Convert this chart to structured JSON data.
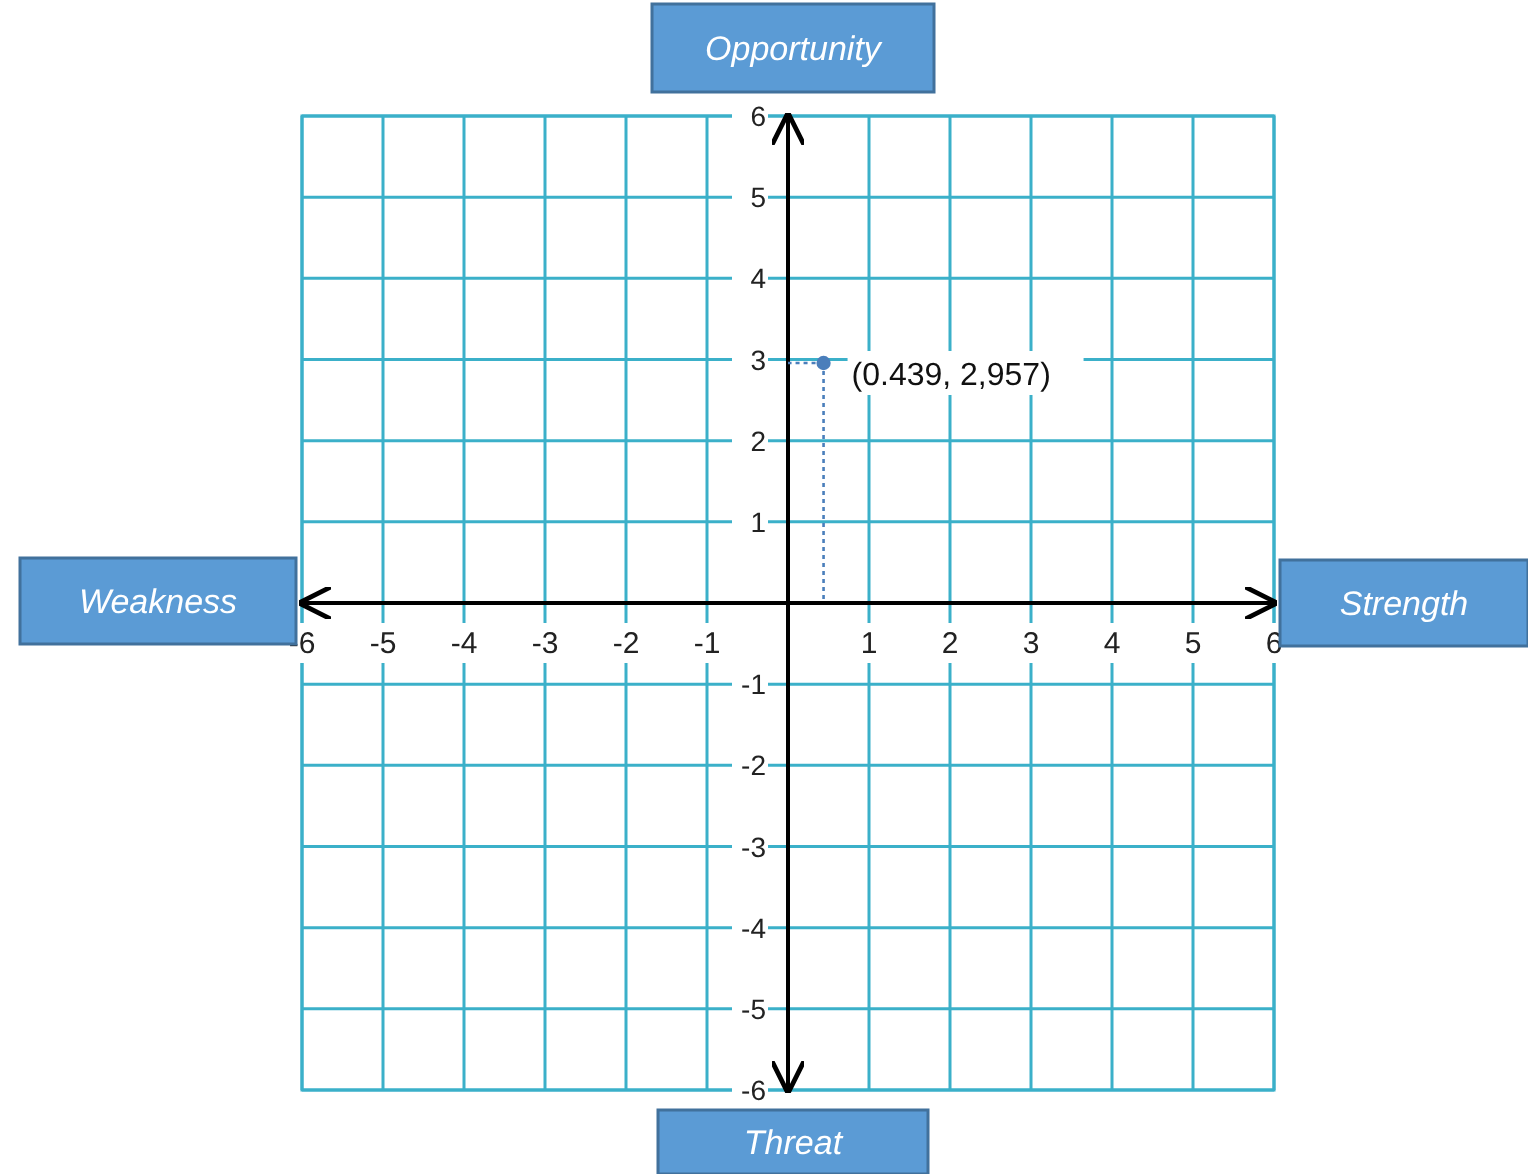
{
  "chart_data": {
    "type": "scatter",
    "xlabel": "Strength",
    "ylabel": "Opportunity",
    "x": [
      0.439
    ],
    "values": [
      2.957
    ],
    "color": "#4a7ebb",
    "marker": "circle",
    "xlim": [
      -6,
      6
    ],
    "ylim": [
      -6,
      6
    ],
    "xticks": [
      -6,
      -5,
      -4,
      -3,
      -2,
      -1,
      1,
      2,
      3,
      4,
      5,
      6
    ],
    "yticks": [
      -6,
      -5,
      -4,
      -3,
      -2,
      -1,
      1,
      2,
      3,
      4,
      5,
      6
    ],
    "grid": true,
    "annotations": [
      "Weakness",
      "Threat",
      {
        "text": "(0.439, 2,957)",
        "x": 0.439,
        "y": 2.957
      }
    ]
  }
}
